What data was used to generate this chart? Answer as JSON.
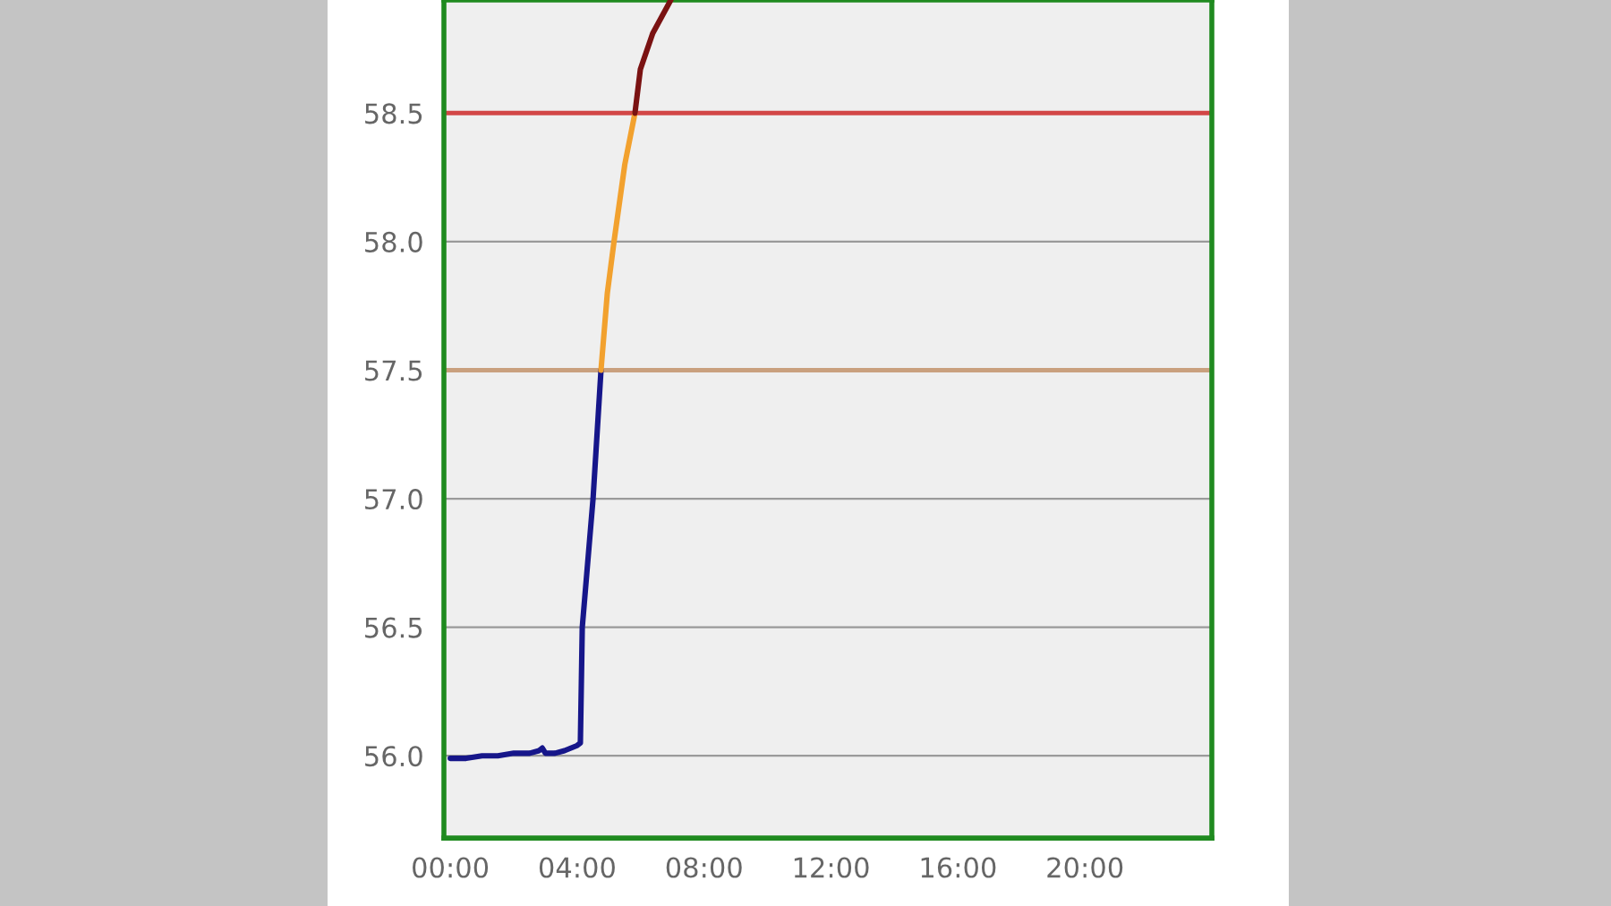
{
  "chart_data": {
    "type": "line",
    "series": [
      {
        "color": "#16168a",
        "x": [
          0,
          0.5,
          1,
          1.5,
          2,
          2.5,
          2.8,
          2.9,
          3.0,
          3.3,
          3.6,
          4.0,
          4.1,
          4.16,
          4.5,
          4.75
        ],
        "values": [
          55.99,
          55.99,
          56.0,
          56.0,
          56.01,
          56.01,
          56.02,
          56.03,
          56.01,
          56.01,
          56.02,
          56.04,
          56.05,
          56.5,
          57.0,
          57.5
        ]
      },
      {
        "color": "#f2a12e",
        "x": [
          4.75,
          4.95,
          5.16,
          5.5,
          5.82
        ],
        "values": [
          57.5,
          57.8,
          58.0,
          58.3,
          58.5
        ]
      },
      {
        "color": "#7a1212",
        "x": [
          5.82,
          5.99,
          6.38,
          6.95
        ],
        "values": [
          58.5,
          58.67,
          58.81,
          58.94
        ]
      }
    ],
    "ref_lines": [
      {
        "axis": "y",
        "value": 57.5,
        "color": "#c9a07e"
      },
      {
        "axis": "y",
        "value": 58.5,
        "color": "#d24646"
      }
    ],
    "xlim": [
      -0.2,
      24
    ],
    "xticks": [
      {
        "value": 0,
        "label": "00:00"
      },
      {
        "value": 4,
        "label": "04:00"
      },
      {
        "value": 8,
        "label": "08:00"
      },
      {
        "value": 12,
        "label": "12:00"
      },
      {
        "value": 16,
        "label": "16:00"
      },
      {
        "value": 20,
        "label": "20:00"
      }
    ],
    "ylim": [
      55.68,
      58.94
    ],
    "yticks": [
      {
        "value": 56,
        "label": "56.0"
      },
      {
        "value": 56.5,
        "label": "56.5"
      },
      {
        "value": 57,
        "label": "57.0"
      },
      {
        "value": 57.5,
        "label": "57.5"
      },
      {
        "value": 58,
        "label": "58.0"
      },
      {
        "value": 58.5,
        "label": "58.5"
      }
    ],
    "grid": "y",
    "marker": "none",
    "line_style": "solid"
  }
}
